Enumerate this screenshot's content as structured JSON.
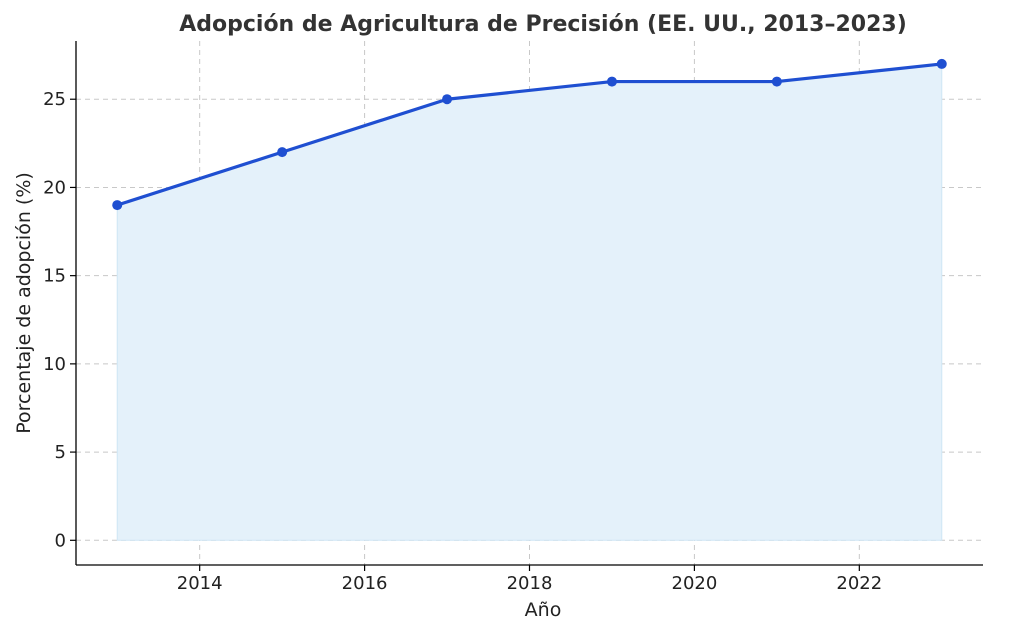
{
  "chart_data": {
    "type": "area",
    "title": "Adopción de Agricultura de Precisión (EE. UU., 2013–2023)",
    "xlabel": "Año",
    "ylabel": "Porcentaje de adopción (%)",
    "x": [
      2013,
      2015,
      2017,
      2019,
      2021,
      2023
    ],
    "values": [
      19,
      22,
      25,
      26,
      26,
      27
    ],
    "xlim": [
      2012.5,
      2023.5
    ],
    "ylim": [
      -1.4,
      28.3
    ],
    "xticks": [
      2014,
      2016,
      2018,
      2020,
      2022
    ],
    "yticks": [
      0,
      5,
      10,
      15,
      20,
      25
    ],
    "grid": true,
    "line_color": "#1f4fd1",
    "fill_color": "#e4f1fa",
    "fill_edge_color": "#cfe6f5"
  }
}
